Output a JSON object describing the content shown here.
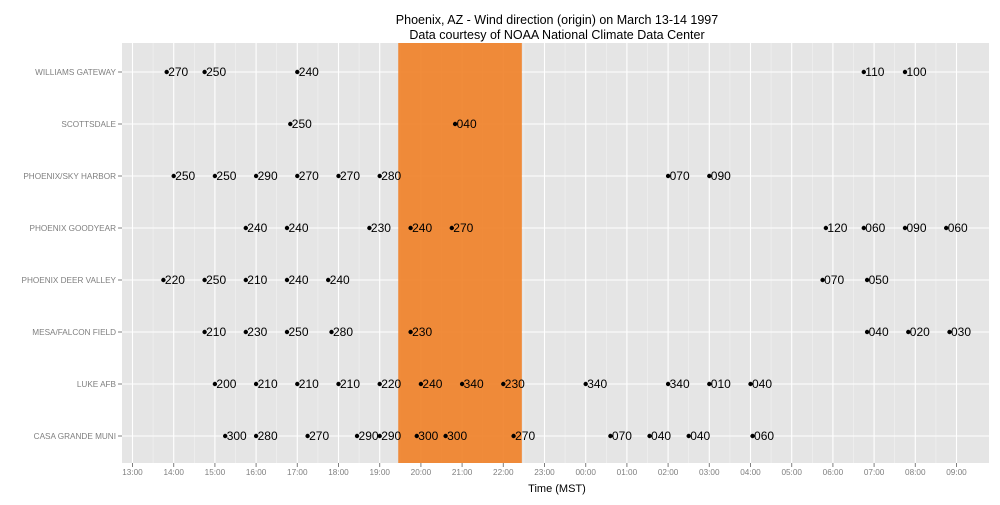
{
  "chart_data": {
    "type": "scatter",
    "title": "Phoenix, AZ - Wind direction (origin) on March 13-14 1997",
    "subtitle": "Data courtesy of NOAA National Climate Data Center",
    "xlabel": "Time (MST)",
    "ylabel": "",
    "x_range_hours": [
      12.8,
      33.7
    ],
    "x_ticks": [
      {
        "h": 13,
        "label": "13:00"
      },
      {
        "h": 14,
        "label": "14:00"
      },
      {
        "h": 15,
        "label": "15:00"
      },
      {
        "h": 16,
        "label": "16:00"
      },
      {
        "h": 17,
        "label": "17:00"
      },
      {
        "h": 18,
        "label": "18:00"
      },
      {
        "h": 19,
        "label": "19:00"
      },
      {
        "h": 20,
        "label": "20:00"
      },
      {
        "h": 21,
        "label": "21:00"
      },
      {
        "h": 22,
        "label": "22:00"
      },
      {
        "h": 23,
        "label": "23:00"
      },
      {
        "h": 24,
        "label": "00:00"
      },
      {
        "h": 25,
        "label": "01:00"
      },
      {
        "h": 26,
        "label": "02:00"
      },
      {
        "h": 27,
        "label": "03:00"
      },
      {
        "h": 28,
        "label": "04:00"
      },
      {
        "h": 29,
        "label": "05:00"
      },
      {
        "h": 30,
        "label": "06:00"
      },
      {
        "h": 31,
        "label": "07:00"
      },
      {
        "h": 32,
        "label": "08:00"
      },
      {
        "h": 33,
        "label": "09:00"
      }
    ],
    "stations": [
      "WILLIAMS GATEWAY",
      "SCOTTSDALE",
      "PHOENIX/SKY HARBOR",
      "PHOENIX GOODYEAR",
      "PHOENIX DEER VALLEY",
      "MESA/FALCON FIELD",
      "LUKE AFB",
      "CASA GRANDE MUNI"
    ],
    "highlight": {
      "start_h": 19.45,
      "end_h": 22.45,
      "color": "#f0822a"
    },
    "colors": {
      "panel": "#e5e5e5",
      "grid_major": "#ffffff",
      "grid_minor": "#f2f2f2",
      "point": "#000000",
      "axis_text": "#7f7f7f"
    },
    "series": [
      {
        "station": "WILLIAMS GATEWAY",
        "points": [
          {
            "t": "13:50",
            "h": 13.83,
            "dir": "270"
          },
          {
            "t": "14:45",
            "h": 14.75,
            "dir": "250"
          },
          {
            "t": "17:00",
            "h": 17.0,
            "dir": "240"
          },
          {
            "t": "06:45",
            "h": 30.75,
            "dir": "110"
          },
          {
            "t": "07:45",
            "h": 31.75,
            "dir": "100"
          }
        ]
      },
      {
        "station": "SCOTTSDALE",
        "points": [
          {
            "t": "16:50",
            "h": 16.83,
            "dir": "250"
          },
          {
            "t": "20:50",
            "h": 20.83,
            "dir": "040"
          }
        ]
      },
      {
        "station": "PHOENIX/SKY HARBOR",
        "points": [
          {
            "t": "14:00",
            "h": 14.0,
            "dir": "250"
          },
          {
            "t": "15:00",
            "h": 15.0,
            "dir": "250"
          },
          {
            "t": "16:00",
            "h": 16.0,
            "dir": "290"
          },
          {
            "t": "17:00",
            "h": 17.0,
            "dir": "270"
          },
          {
            "t": "18:00",
            "h": 18.0,
            "dir": "270"
          },
          {
            "t": "19:00",
            "h": 19.0,
            "dir": "280"
          },
          {
            "t": "02:00",
            "h": 26.0,
            "dir": "070"
          },
          {
            "t": "03:00",
            "h": 27.0,
            "dir": "090"
          }
        ]
      },
      {
        "station": "PHOENIX GOODYEAR",
        "points": [
          {
            "t": "15:45",
            "h": 15.75,
            "dir": "240"
          },
          {
            "t": "16:45",
            "h": 16.75,
            "dir": "240"
          },
          {
            "t": "18:45",
            "h": 18.75,
            "dir": "230"
          },
          {
            "t": "19:45",
            "h": 19.75,
            "dir": "240"
          },
          {
            "t": "20:45",
            "h": 20.75,
            "dir": "270"
          },
          {
            "t": "05:50",
            "h": 29.83,
            "dir": "120"
          },
          {
            "t": "06:45",
            "h": 30.75,
            "dir": "060"
          },
          {
            "t": "07:45",
            "h": 31.75,
            "dir": "090"
          },
          {
            "t": "08:45",
            "h": 32.75,
            "dir": "060"
          }
        ]
      },
      {
        "station": "PHOENIX DEER VALLEY",
        "points": [
          {
            "t": "13:45",
            "h": 13.75,
            "dir": "220"
          },
          {
            "t": "14:45",
            "h": 14.75,
            "dir": "250"
          },
          {
            "t": "15:45",
            "h": 15.75,
            "dir": "210"
          },
          {
            "t": "16:45",
            "h": 16.75,
            "dir": "240"
          },
          {
            "t": "17:45",
            "h": 17.75,
            "dir": "240"
          },
          {
            "t": "05:45",
            "h": 29.75,
            "dir": "070"
          },
          {
            "t": "06:50",
            "h": 30.83,
            "dir": "050"
          }
        ]
      },
      {
        "station": "MESA/FALCON FIELD",
        "points": [
          {
            "t": "14:45",
            "h": 14.75,
            "dir": "210"
          },
          {
            "t": "15:45",
            "h": 15.75,
            "dir": "230"
          },
          {
            "t": "16:45",
            "h": 16.75,
            "dir": "250"
          },
          {
            "t": "17:50",
            "h": 17.83,
            "dir": "280"
          },
          {
            "t": "19:45",
            "h": 19.75,
            "dir": "230"
          },
          {
            "t": "06:50",
            "h": 30.83,
            "dir": "040"
          },
          {
            "t": "07:50",
            "h": 31.83,
            "dir": "020"
          },
          {
            "t": "08:50",
            "h": 32.83,
            "dir": "030"
          }
        ]
      },
      {
        "station": "LUKE AFB",
        "points": [
          {
            "t": "15:00",
            "h": 15.0,
            "dir": "200"
          },
          {
            "t": "16:00",
            "h": 16.0,
            "dir": "210"
          },
          {
            "t": "17:00",
            "h": 17.0,
            "dir": "210"
          },
          {
            "t": "18:00",
            "h": 18.0,
            "dir": "210"
          },
          {
            "t": "19:00",
            "h": 19.0,
            "dir": "220"
          },
          {
            "t": "20:00",
            "h": 20.0,
            "dir": "240"
          },
          {
            "t": "21:00",
            "h": 21.0,
            "dir": "340"
          },
          {
            "t": "22:00",
            "h": 22.0,
            "dir": "230"
          },
          {
            "t": "00:00",
            "h": 24.0,
            "dir": "340"
          },
          {
            "t": "02:00",
            "h": 26.0,
            "dir": "340"
          },
          {
            "t": "03:00",
            "h": 27.0,
            "dir": "010"
          },
          {
            "t": "04:00",
            "h": 28.0,
            "dir": "040"
          }
        ]
      },
      {
        "station": "CASA GRANDE MUNI",
        "points": [
          {
            "t": "15:15",
            "h": 15.25,
            "dir": "300"
          },
          {
            "t": "16:00",
            "h": 16.0,
            "dir": "280"
          },
          {
            "t": "17:15",
            "h": 17.25,
            "dir": "270"
          },
          {
            "t": "18:30",
            "h": 18.45,
            "dir": "290"
          },
          {
            "t": "19:00",
            "h": 19.0,
            "dir": "290"
          },
          {
            "t": "19:50",
            "h": 19.9,
            "dir": "300"
          },
          {
            "t": "20:35",
            "h": 20.6,
            "dir": "300"
          },
          {
            "t": "22:15",
            "h": 22.25,
            "dir": "270"
          },
          {
            "t": "00:35",
            "h": 24.6,
            "dir": "070"
          },
          {
            "t": "01:35",
            "h": 25.55,
            "dir": "040"
          },
          {
            "t": "02:30",
            "h": 26.5,
            "dir": "040"
          },
          {
            "t": "04:00",
            "h": 28.05,
            "dir": "060"
          }
        ]
      }
    ]
  }
}
